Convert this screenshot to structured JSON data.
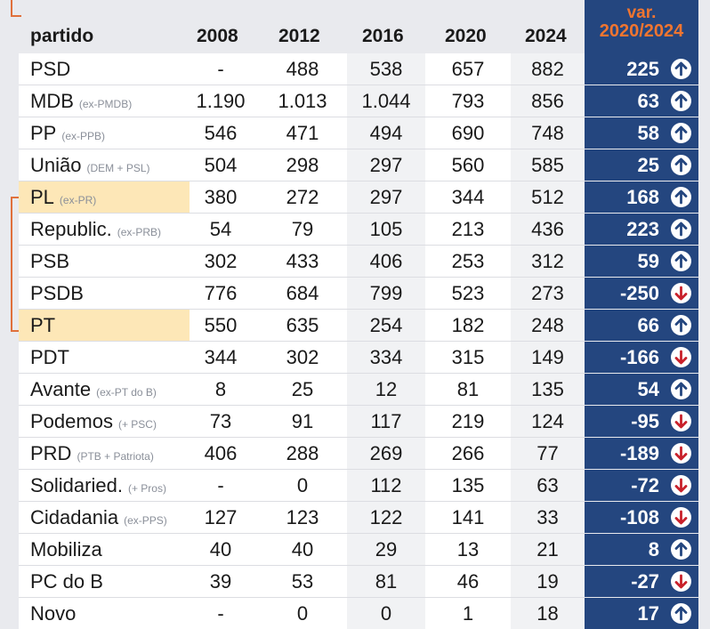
{
  "header": {
    "party_label": "partido",
    "years": [
      "2008",
      "2012",
      "2016",
      "2020",
      "2024"
    ],
    "var_line1": "var.",
    "var_line2": "2020/2024"
  },
  "colors": {
    "navy": "#24467f",
    "orange": "#f07530",
    "highlight": "#fde7b7",
    "down_arrow": "#c8202a",
    "up_arrow": "#24467f"
  },
  "rows": [
    {
      "name": "PSD",
      "sub": "",
      "v2008": "-",
      "v2012": "488",
      "v2016": "538",
      "v2020": "657",
      "v2024": "882",
      "var": "225",
      "dir": "up",
      "highlight": false
    },
    {
      "name": "MDB",
      "sub": "(ex-PMDB)",
      "v2008": "1.190",
      "v2012": "1.013",
      "v2016": "1.044",
      "v2020": "793",
      "v2024": "856",
      "var": "63",
      "dir": "up",
      "highlight": false
    },
    {
      "name": "PP",
      "sub": "(ex-PPB)",
      "v2008": "546",
      "v2012": "471",
      "v2016": "494",
      "v2020": "690",
      "v2024": "748",
      "var": "58",
      "dir": "up",
      "highlight": false
    },
    {
      "name": "União",
      "sub": "(DEM + PSL)",
      "v2008": "504",
      "v2012": "298",
      "v2016": "297",
      "v2020": "560",
      "v2024": "585",
      "var": "25",
      "dir": "up",
      "highlight": false
    },
    {
      "name": "PL",
      "sub": "(ex-PR)",
      "v2008": "380",
      "v2012": "272",
      "v2016": "297",
      "v2020": "344",
      "v2024": "512",
      "var": "168",
      "dir": "up",
      "highlight": true
    },
    {
      "name": "Republic.",
      "sub": "(ex-PRB)",
      "v2008": "54",
      "v2012": "79",
      "v2016": "105",
      "v2020": "213",
      "v2024": "436",
      "var": "223",
      "dir": "up",
      "highlight": false
    },
    {
      "name": "PSB",
      "sub": "",
      "v2008": "302",
      "v2012": "433",
      "v2016": "406",
      "v2020": "253",
      "v2024": "312",
      "var": "59",
      "dir": "up",
      "highlight": false
    },
    {
      "name": "PSDB",
      "sub": "",
      "v2008": "776",
      "v2012": "684",
      "v2016": "799",
      "v2020": "523",
      "v2024": "273",
      "var": "-250",
      "dir": "down",
      "highlight": false
    },
    {
      "name": "PT",
      "sub": "",
      "v2008": "550",
      "v2012": "635",
      "v2016": "254",
      "v2020": "182",
      "v2024": "248",
      "var": "66",
      "dir": "up",
      "highlight": true
    },
    {
      "name": "PDT",
      "sub": "",
      "v2008": "344",
      "v2012": "302",
      "v2016": "334",
      "v2020": "315",
      "v2024": "149",
      "var": "-166",
      "dir": "down",
      "highlight": false
    },
    {
      "name": "Avante",
      "sub": "(ex-PT do B)",
      "v2008": "8",
      "v2012": "25",
      "v2016": "12",
      "v2020": "81",
      "v2024": "135",
      "var": "54",
      "dir": "up",
      "highlight": false
    },
    {
      "name": "Podemos",
      "sub": "(+ PSC)",
      "v2008": "73",
      "v2012": "91",
      "v2016": "117",
      "v2020": "219",
      "v2024": "124",
      "var": "-95",
      "dir": "down",
      "highlight": false
    },
    {
      "name": "PRD",
      "sub": "(PTB + Patriota)",
      "v2008": "406",
      "v2012": "288",
      "v2016": "269",
      "v2020": "266",
      "v2024": "77",
      "var": "-189",
      "dir": "down",
      "highlight": false
    },
    {
      "name": "Solidaried.",
      "sub": "(+ Pros)",
      "v2008": "-",
      "v2012": "0",
      "v2016": "112",
      "v2020": "135",
      "v2024": "63",
      "var": "-72",
      "dir": "down",
      "highlight": false
    },
    {
      "name": "Cidadania",
      "sub": "(ex-PPS)",
      "v2008": "127",
      "v2012": "123",
      "v2016": "122",
      "v2020": "141",
      "v2024": "33",
      "var": "-108",
      "dir": "down",
      "highlight": false
    },
    {
      "name": "Mobiliza",
      "sub": "",
      "v2008": "40",
      "v2012": "40",
      "v2016": "29",
      "v2020": "13",
      "v2024": "21",
      "var": "8",
      "dir": "up",
      "highlight": false
    },
    {
      "name": "PC do B",
      "sub": "",
      "v2008": "39",
      "v2012": "53",
      "v2016": "81",
      "v2020": "46",
      "v2024": "19",
      "var": "-27",
      "dir": "down",
      "highlight": false
    },
    {
      "name": "Novo",
      "sub": "",
      "v2008": "-",
      "v2012": "0",
      "v2016": "0",
      "v2020": "1",
      "v2024": "18",
      "var": "17",
      "dir": "up",
      "highlight": false
    }
  ]
}
